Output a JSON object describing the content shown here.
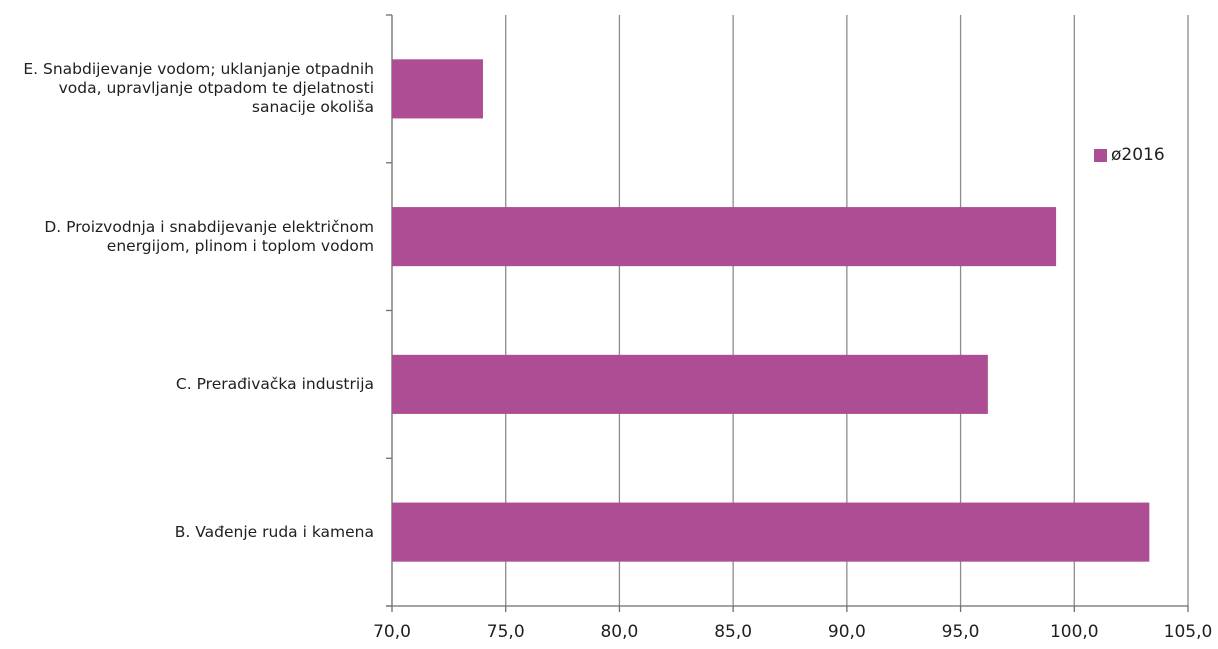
{
  "chart_data": {
    "type": "bar",
    "orientation": "horizontal",
    "categories": [
      "E. Snabdijevanje vodom; uklanjanje otpadnih voda, upravljanje otpadom te djelatnosti sanacije okoliša",
      "D. Proizvodnja i snabdijevanje električnom energijom, plinom i toplom vodom",
      "C. Prerađivačka industrija",
      "B. Vađenje ruda i kamena"
    ],
    "category_lines": [
      [
        "E. Snabdijevanje vodom; uklanjanje otpadnih",
        "voda, upravljanje otpadom te djelatnosti",
        "sanacije okoliša"
      ],
      [
        "D. Proizvodnja i snabdijevanje električnom",
        "energijom, plinom i toplom vodom"
      ],
      [
        "C. Prerađivačka industrija"
      ],
      [
        "B. Vađenje ruda i kamena"
      ]
    ],
    "series": [
      {
        "name": "ø2016",
        "values": [
          74.0,
          99.2,
          96.2,
          103.3
        ]
      }
    ],
    "xlim": [
      70,
      105
    ],
    "xticks": [
      70,
      75,
      80,
      85,
      90,
      95,
      100,
      105
    ],
    "xtick_labels": [
      "70,0",
      "75,0",
      "80,0",
      "85,0",
      "90,0",
      "95,0",
      "100,0",
      "105,0"
    ],
    "grid": "vertical",
    "legend_position": "right",
    "title": "",
    "xlabel": "",
    "ylabel": ""
  },
  "colors": {
    "bar": "#AD4D93",
    "grid": "#8c8c8c",
    "axis": "#6e6e6e"
  },
  "legend": {
    "label": "ø2016"
  }
}
